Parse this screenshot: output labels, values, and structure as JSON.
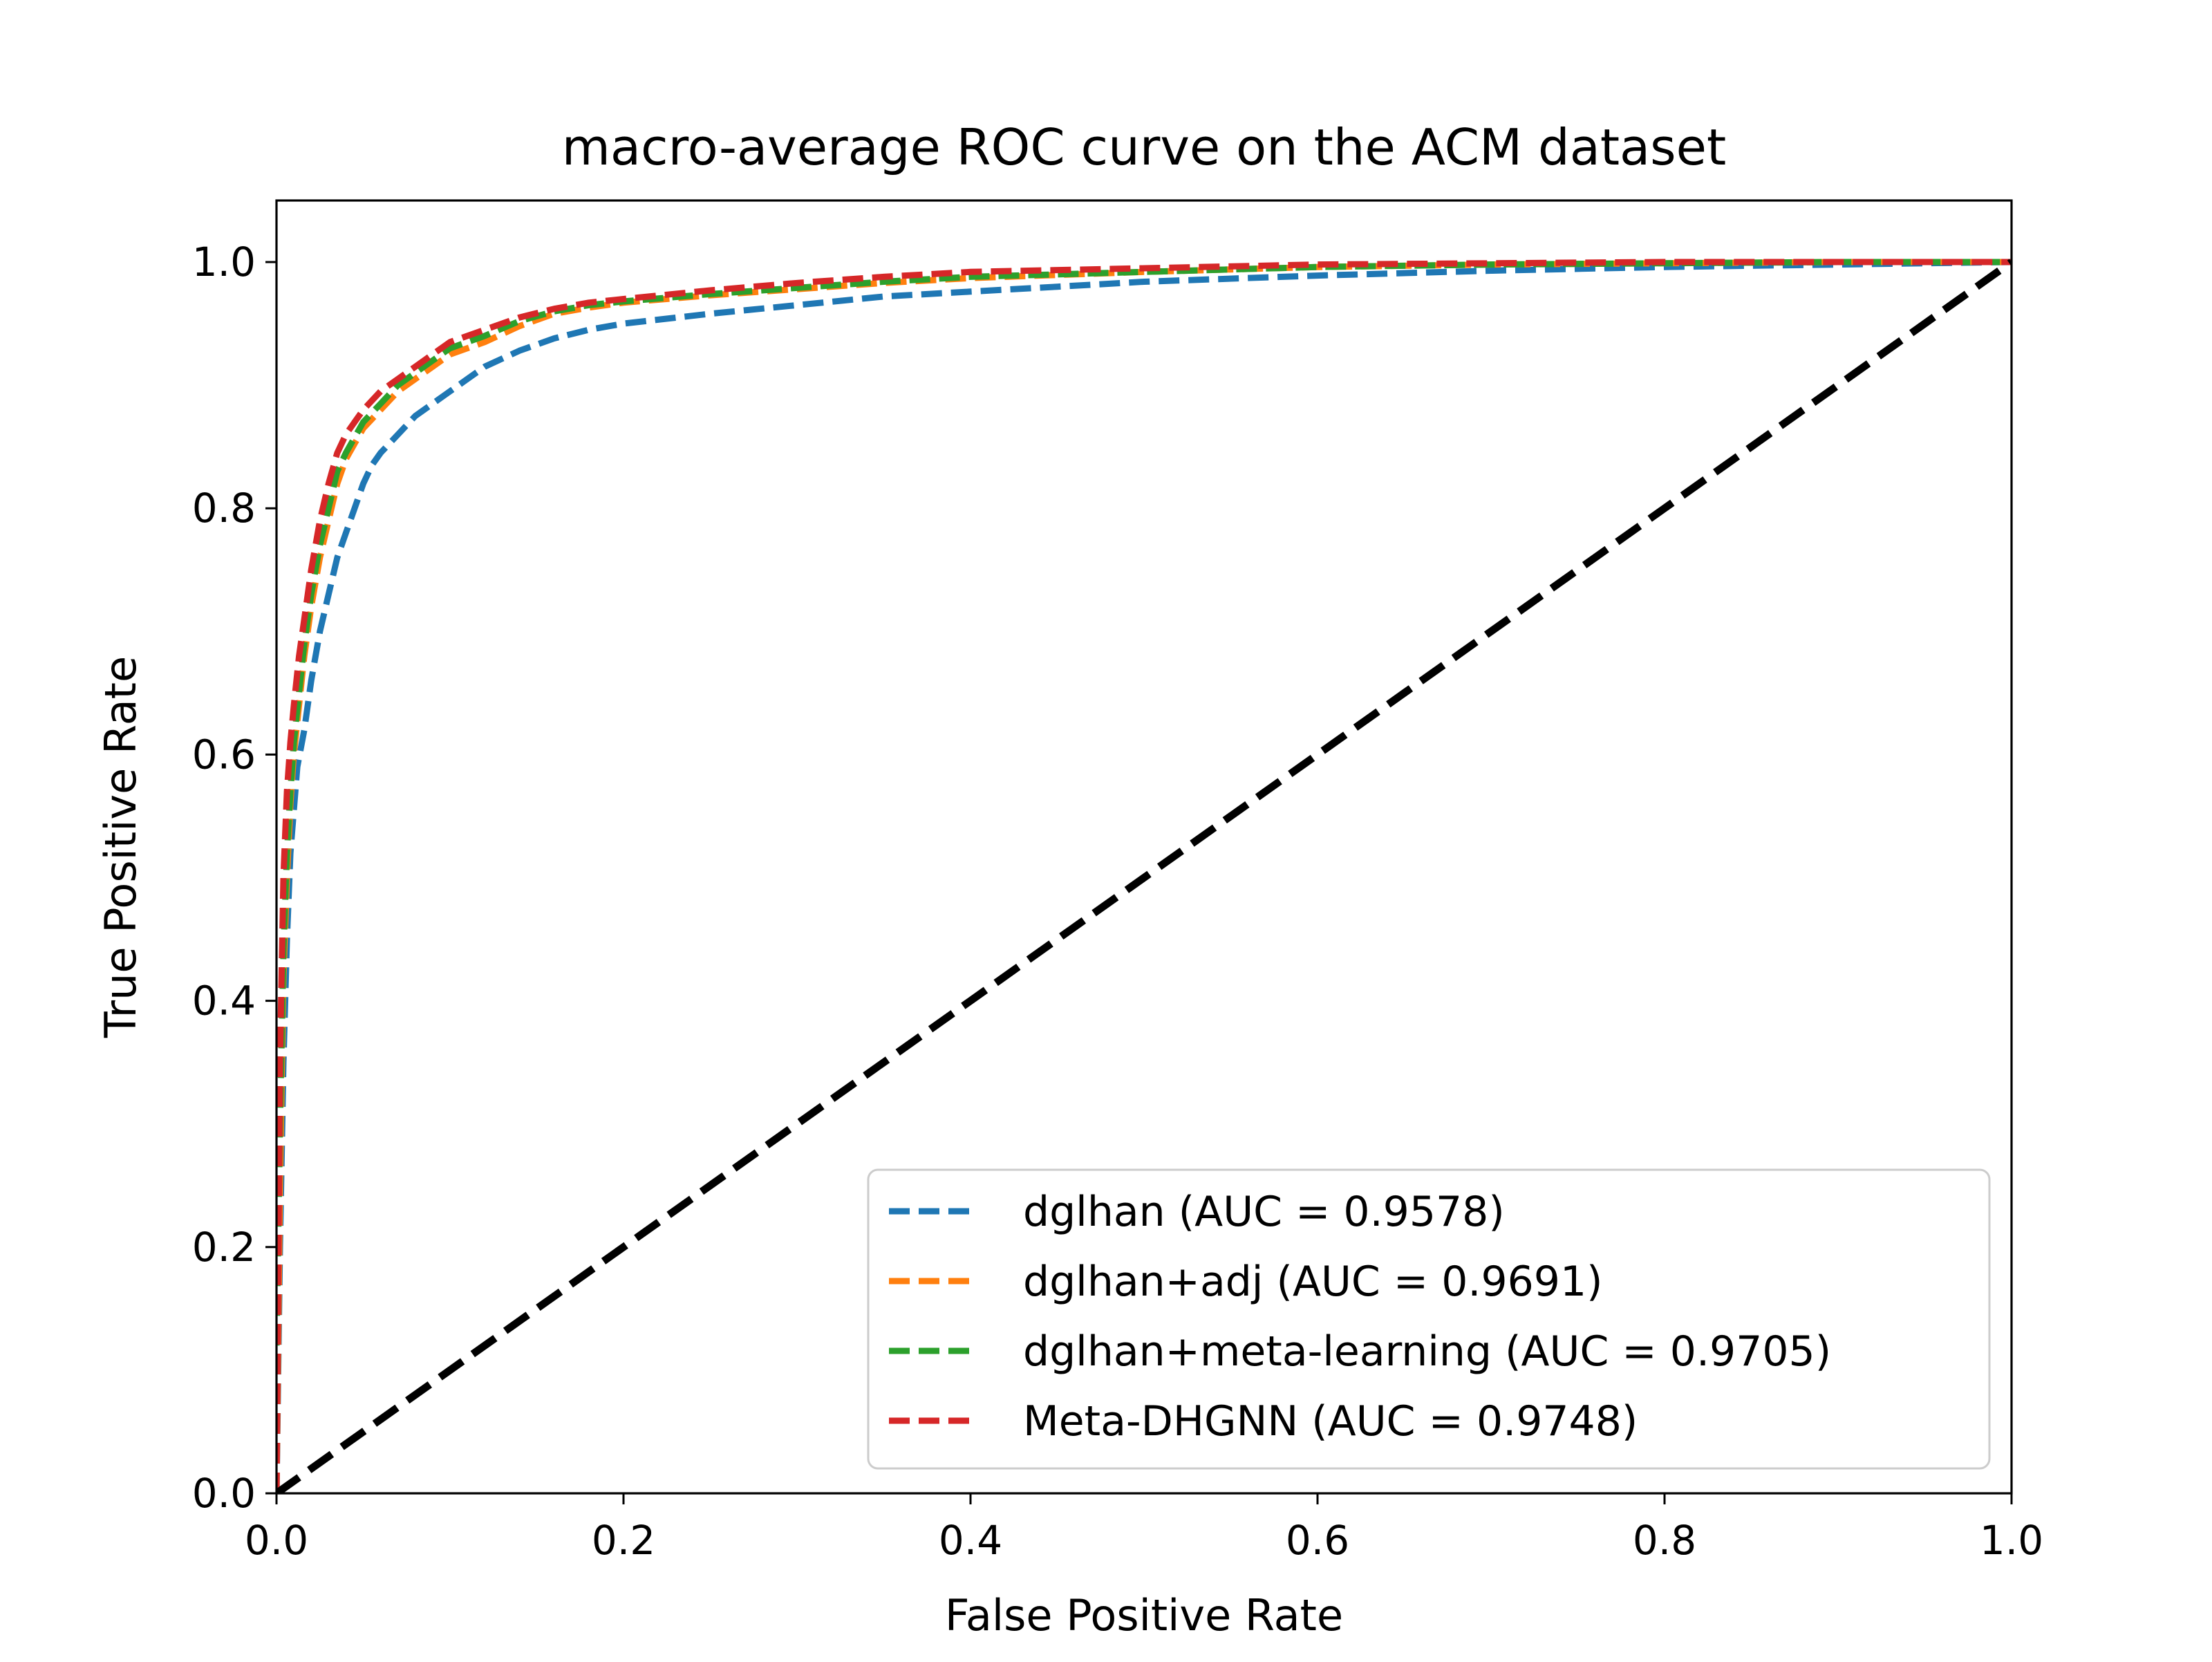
{
  "chart_data": {
    "type": "line",
    "title": "macro-average ROC curve on the ACM dataset",
    "xlabel": "False Positive Rate",
    "ylabel": "True Positive Rate",
    "xlim": [
      0.0,
      1.0
    ],
    "ylim": [
      0.0,
      1.05
    ],
    "xticks": [
      0.0,
      0.2,
      0.4,
      0.6,
      0.8,
      1.0
    ],
    "yticks": [
      0.0,
      0.2,
      0.4,
      0.6,
      0.8,
      1.0
    ],
    "xtick_labels": [
      "0.0",
      "0.2",
      "0.4",
      "0.6",
      "0.8",
      "1.0"
    ],
    "ytick_labels": [
      "0.0",
      "0.2",
      "0.4",
      "0.6",
      "0.8",
      "1.0"
    ],
    "grid": false,
    "legend_position": "lower-right",
    "series": [
      {
        "name": "dglhan (AUC = 0.9578)",
        "color": "#1f77b4",
        "style": "dashed",
        "x": [
          0.0,
          0.002,
          0.004,
          0.006,
          0.008,
          0.012,
          0.016,
          0.02,
          0.025,
          0.03,
          0.035,
          0.04,
          0.045,
          0.05,
          0.055,
          0.06,
          0.07,
          0.08,
          0.09,
          0.1,
          0.11,
          0.12,
          0.14,
          0.16,
          0.18,
          0.2,
          0.25,
          0.3,
          0.35,
          0.4,
          0.45,
          0.5,
          0.6,
          0.7,
          0.8,
          0.9,
          1.0
        ],
        "y": [
          0.0,
          0.2,
          0.35,
          0.45,
          0.52,
          0.59,
          0.62,
          0.66,
          0.7,
          0.73,
          0.76,
          0.78,
          0.8,
          0.82,
          0.835,
          0.845,
          0.86,
          0.875,
          0.885,
          0.895,
          0.905,
          0.915,
          0.928,
          0.938,
          0.945,
          0.95,
          0.958,
          0.965,
          0.972,
          0.976,
          0.98,
          0.984,
          0.989,
          0.993,
          0.996,
          0.998,
          1.0
        ]
      },
      {
        "name": "dglhan+adj (AUC = 0.9691)",
        "color": "#ff7f0e",
        "style": "dashed",
        "x": [
          0.0,
          0.002,
          0.004,
          0.006,
          0.008,
          0.01,
          0.013,
          0.016,
          0.02,
          0.025,
          0.03,
          0.035,
          0.04,
          0.05,
          0.06,
          0.07,
          0.08,
          0.09,
          0.1,
          0.12,
          0.14,
          0.16,
          0.18,
          0.2,
          0.25,
          0.3,
          0.35,
          0.4,
          0.5,
          0.6,
          0.7,
          0.8,
          0.9,
          1.0
        ],
        "y": [
          0.0,
          0.25,
          0.42,
          0.5,
          0.56,
          0.6,
          0.64,
          0.68,
          0.72,
          0.76,
          0.79,
          0.82,
          0.84,
          0.865,
          0.88,
          0.895,
          0.905,
          0.915,
          0.925,
          0.935,
          0.948,
          0.958,
          0.963,
          0.967,
          0.973,
          0.978,
          0.983,
          0.987,
          0.992,
          0.996,
          0.998,
          0.999,
          1.0,
          1.0
        ]
      },
      {
        "name": "dglhan+meta-learning (AUC = 0.9705)",
        "color": "#2ca02c",
        "style": "dashed",
        "x": [
          0.0,
          0.002,
          0.004,
          0.006,
          0.008,
          0.01,
          0.013,
          0.016,
          0.02,
          0.025,
          0.03,
          0.035,
          0.04,
          0.05,
          0.06,
          0.07,
          0.08,
          0.09,
          0.1,
          0.12,
          0.14,
          0.16,
          0.18,
          0.2,
          0.25,
          0.3,
          0.35,
          0.4,
          0.5,
          0.6,
          0.7,
          0.8,
          0.9,
          1.0
        ],
        "y": [
          0.12,
          0.3,
          0.44,
          0.52,
          0.57,
          0.61,
          0.65,
          0.69,
          0.73,
          0.77,
          0.8,
          0.83,
          0.845,
          0.87,
          0.885,
          0.9,
          0.91,
          0.92,
          0.93,
          0.94,
          0.952,
          0.96,
          0.965,
          0.968,
          0.974,
          0.979,
          0.984,
          0.988,
          0.992,
          0.996,
          0.998,
          0.999,
          1.0,
          1.0
        ]
      },
      {
        "name": "Meta-DHGNN (AUC = 0.9748)",
        "color": "#d62728",
        "style": "dashed",
        "x": [
          0.0,
          0.002,
          0.004,
          0.006,
          0.008,
          0.01,
          0.013,
          0.016,
          0.02,
          0.025,
          0.03,
          0.035,
          0.04,
          0.05,
          0.06,
          0.07,
          0.08,
          0.09,
          0.1,
          0.12,
          0.14,
          0.16,
          0.18,
          0.2,
          0.25,
          0.3,
          0.35,
          0.4,
          0.5,
          0.6,
          0.7,
          0.8,
          0.9,
          1.0
        ],
        "y": [
          0.0,
          0.35,
          0.5,
          0.57,
          0.61,
          0.64,
          0.68,
          0.71,
          0.75,
          0.79,
          0.82,
          0.845,
          0.86,
          0.88,
          0.895,
          0.905,
          0.915,
          0.925,
          0.935,
          0.945,
          0.955,
          0.962,
          0.967,
          0.97,
          0.977,
          0.983,
          0.988,
          0.992,
          0.995,
          0.998,
          0.999,
          1.0,
          1.0,
          1.0
        ]
      },
      {
        "name": "",
        "color": "#000000",
        "style": "dashed",
        "x": [
          0.0,
          1.0
        ],
        "y": [
          0.0,
          1.0
        ]
      }
    ]
  }
}
